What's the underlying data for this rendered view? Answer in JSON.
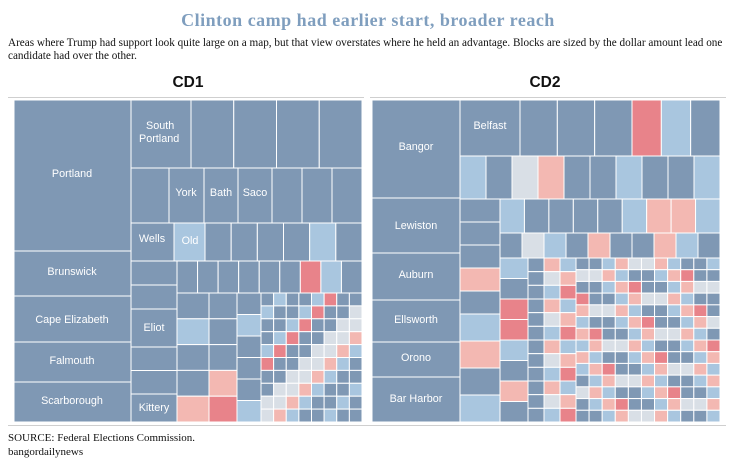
{
  "title": "Clinton camp had earlier start, broader reach",
  "subtitle": "Areas where Trump had support look quite large on a map, but that view overstates where he held an advantage. Blocks are sized by the dollar amount lead one candidate had over the other.",
  "source": "SOURCE: Federal Elections Commission.",
  "byline": "bangordailynews",
  "colors": {
    "clinton_strong": "#7f98b4",
    "clinton_light": "#a9c6df",
    "neutral": "#d9dfe6",
    "trump_light": "#f3b8b2",
    "trump_strong": "#e8838a"
  },
  "chart_data": [
    {
      "type": "treemap",
      "title": "CD1",
      "value_meaning": "dollar amount lead of one candidate over the other",
      "labeled_blocks": [
        {
          "name": "Portland",
          "leader": "Clinton"
        },
        {
          "name": "Brunswick",
          "leader": "Clinton"
        },
        {
          "name": "Cape Elizabeth",
          "leader": "Clinton"
        },
        {
          "name": "Falmouth",
          "leader": "Clinton"
        },
        {
          "name": "Scarborough",
          "leader": "Clinton"
        },
        {
          "name": "South Portland",
          "leader": "Clinton"
        },
        {
          "name": "York",
          "leader": "Clinton"
        },
        {
          "name": "Bath",
          "leader": "Clinton"
        },
        {
          "name": "Saco",
          "leader": "Clinton"
        },
        {
          "name": "Wells",
          "leader": "Clinton"
        },
        {
          "name": "Old",
          "leader": "Clinton"
        },
        {
          "name": "Eliot",
          "leader": "Clinton"
        },
        {
          "name": "Kittery",
          "leader": "Clinton"
        }
      ]
    },
    {
      "type": "treemap",
      "title": "CD2",
      "value_meaning": "dollar amount lead of one candidate over the other",
      "labeled_blocks": [
        {
          "name": "Bangor",
          "leader": "Clinton"
        },
        {
          "name": "Belfast",
          "leader": "Clinton"
        },
        {
          "name": "Lewiston",
          "leader": "Clinton"
        },
        {
          "name": "Auburn",
          "leader": "Clinton"
        },
        {
          "name": "Ellsworth",
          "leader": "Clinton"
        },
        {
          "name": "Orono",
          "leader": "Clinton"
        },
        {
          "name": "Bar Harbor",
          "leader": "Clinton"
        }
      ]
    }
  ]
}
